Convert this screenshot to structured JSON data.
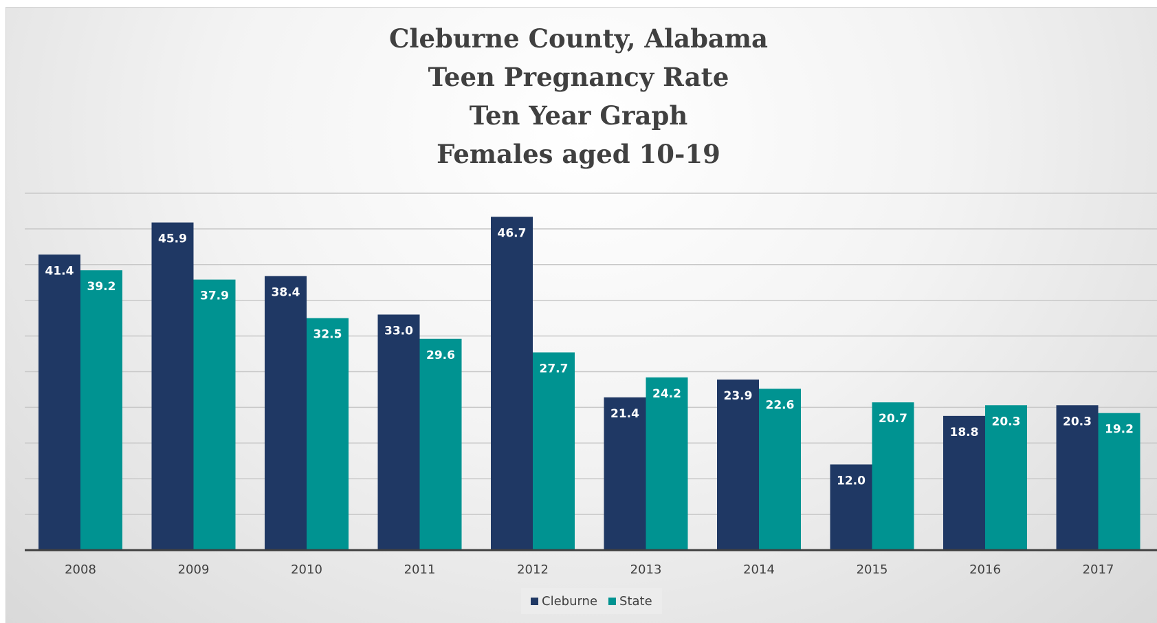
{
  "chart_data": {
    "type": "bar",
    "title": [
      "Cleburne County, Alabama",
      "Teen Pregnancy Rate",
      "Ten Year Graph",
      "Females aged 10-19"
    ],
    "categories": [
      "2008",
      "2009",
      "2010",
      "2011",
      "2012",
      "2013",
      "2014",
      "2015",
      "2016",
      "2017"
    ],
    "series": [
      {
        "name": "Cleburne",
        "color": "#1f3864",
        "values": [
          41.4,
          45.9,
          38.4,
          33.0,
          46.7,
          21.4,
          23.9,
          12.0,
          18.8,
          20.3
        ],
        "labels": [
          "41.4",
          "45.9",
          "38.4",
          "33.0",
          "46.7",
          "21.4",
          "23.9",
          "12.0",
          "18.8",
          "20.3"
        ]
      },
      {
        "name": "State",
        "color": "#009391",
        "values": [
          39.2,
          37.9,
          32.5,
          29.6,
          27.7,
          24.2,
          22.6,
          20.7,
          20.3,
          19.2
        ],
        "labels": [
          "39.2",
          "37.9",
          "32.5",
          "29.6",
          "27.7",
          "24.2",
          "22.6",
          "20.7",
          "20.3",
          "19.2"
        ]
      }
    ],
    "ylim": [
      0,
      50
    ],
    "grid": true,
    "legend_position": "bottom"
  }
}
